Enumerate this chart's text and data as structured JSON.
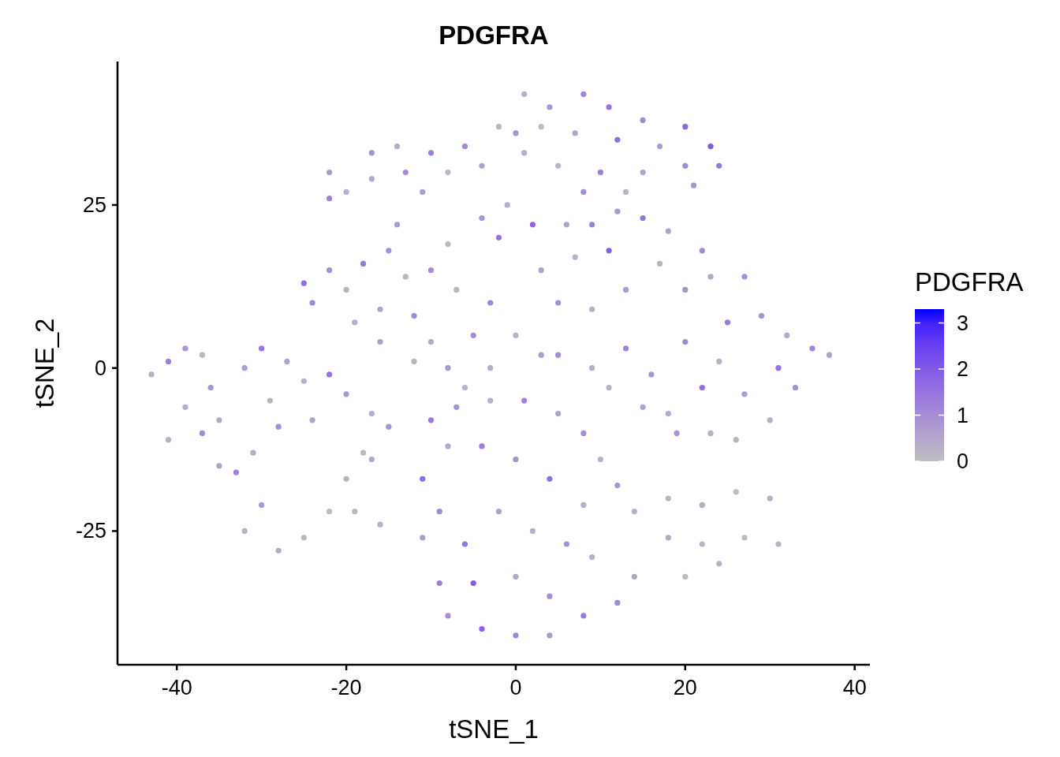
{
  "chart_data": {
    "type": "scatter",
    "title": "PDGFRA",
    "xlabel": "tSNE_1",
    "ylabel": "tSNE_2",
    "clabel": "PDGFRA",
    "xlim": [
      -47,
      41.8
    ],
    "ylim": [
      -45.5,
      47
    ],
    "xticks": [
      -40,
      -20,
      0,
      20,
      40
    ],
    "yticks": [
      -25,
      0,
      25
    ],
    "clim": [
      0,
      3.3
    ],
    "cticks": [
      0,
      1,
      2,
      3
    ],
    "grid": false,
    "marker": "circle",
    "x": [
      1,
      4,
      8,
      11,
      15,
      20,
      23,
      24,
      20,
      15,
      10,
      5,
      1,
      0,
      3,
      7,
      12,
      17,
      21,
      8,
      13,
      -2,
      -22,
      -20,
      -22,
      -17,
      -14,
      -10,
      -6,
      -4,
      -8,
      -13,
      -17,
      -11,
      -25,
      -24,
      -22,
      -20,
      -18,
      -15,
      -13,
      -16,
      -19,
      -12,
      -10,
      -8,
      -12,
      -6,
      -5,
      -7,
      -3,
      -2,
      -4,
      -1,
      2,
      3,
      0,
      3,
      5,
      7,
      9,
      12,
      15,
      18,
      22,
      23,
      20,
      17,
      13,
      9,
      11,
      6,
      -8,
      -14,
      -10,
      -16,
      -3,
      27,
      5,
      9,
      13,
      11,
      16,
      20,
      18,
      23,
      25,
      22,
      27,
      29,
      32,
      35,
      37,
      33,
      30,
      26,
      19,
      24,
      15,
      31,
      -43,
      -41,
      -39,
      -37,
      -36,
      -39,
      -41,
      -37,
      -35,
      -32,
      -30,
      -27,
      -25,
      -22,
      -20,
      -17,
      -15,
      -18,
      -20,
      -22,
      -25,
      -28,
      -32,
      -30,
      -33,
      -35,
      -31,
      -28,
      -29,
      -24,
      -19,
      -16,
      -17,
      -10,
      -7,
      -3,
      1,
      5,
      8,
      10,
      12,
      8,
      4,
      0,
      -4,
      -8,
      -11,
      -9,
      -11,
      -6,
      -2,
      2,
      6,
      9,
      14,
      12,
      8,
      4,
      0,
      -4,
      -8,
      -9,
      -5,
      0,
      4,
      14,
      18,
      22,
      26,
      30,
      18,
      22,
      27,
      31,
      24,
      20
    ],
    "values": [
      42,
      40,
      42,
      40,
      38,
      37,
      34,
      31,
      31,
      30,
      30,
      31,
      33,
      36,
      37,
      36,
      35,
      34,
      28,
      27,
      27,
      37,
      30,
      27,
      26,
      33,
      34,
      33,
      34,
      31,
      30,
      30,
      29,
      27,
      13,
      10,
      15,
      12,
      16,
      18,
      14,
      9,
      7,
      8,
      4,
      0,
      1,
      -3,
      5,
      12,
      10,
      20,
      23,
      25,
      22,
      15,
      5,
      2,
      10,
      17,
      22,
      24,
      23,
      21,
      18,
      14,
      12,
      16,
      12,
      9,
      18,
      22,
      19,
      22,
      15,
      4,
      0,
      14,
      2,
      0,
      3,
      -3,
      -1,
      4,
      -7,
      -10,
      7,
      -3,
      -4,
      8,
      5,
      3,
      2,
      -3,
      -8,
      -11,
      -10,
      1,
      -6,
      0,
      -1,
      1,
      3,
      2,
      -3,
      -6,
      -11,
      -10,
      -8,
      0,
      3,
      1,
      -2,
      -1,
      -4,
      -7,
      -9,
      -13,
      -17,
      -22,
      -26,
      -28,
      -25,
      -21,
      -16,
      -15,
      -13,
      -9,
      -5,
      -8,
      -22,
      -24,
      -14,
      -8,
      -6,
      -5,
      -5,
      -7,
      -10,
      -14,
      -18,
      -21,
      -17,
      -14,
      -12,
      -12,
      -17,
      -22,
      -26,
      -27,
      -22,
      -25,
      -27,
      -29,
      -32,
      -36,
      -38,
      -41,
      -41,
      -40,
      -38,
      -33,
      -33,
      -32,
      -35,
      -22,
      -20,
      -21,
      -19,
      -20,
      -26,
      -27,
      -26,
      -27,
      -30,
      -32
    ],
    "cvalues": [
      0.3,
      0.8,
      1.2,
      1.5,
      1.0,
      1.8,
      2.0,
      1.4,
      1.1,
      0.6,
      1.3,
      0.2,
      0.4,
      0.9,
      0.1,
      0.5,
      1.7,
      0.7,
      0.9,
      1.0,
      0.3,
      0.2,
      0.8,
      0.3,
      1.2,
      0.9,
      0.4,
      1.3,
      1.1,
      0.6,
      0.2,
      1.0,
      0.5,
      0.7,
      1.6,
      1.2,
      1.0,
      0.3,
      1.4,
      0.9,
      0.2,
      0.6,
      0.4,
      1.1,
      0.5,
      0.8,
      0.2,
      0.3,
      1.0,
      0.2,
      1.2,
      1.5,
      0.9,
      0.4,
      1.8,
      0.6,
      0.3,
      0.7,
      1.0,
      0.3,
      1.3,
      0.8,
      1.5,
      0.6,
      1.1,
      0.5,
      0.9,
      0.2,
      0.7,
      0.4,
      1.9,
      0.6,
      0.2,
      0.8,
      1.0,
      0.7,
      0.4,
      1.0,
      1.0,
      0.4,
      1.2,
      0.3,
      0.8,
      1.1,
      0.5,
      0.3,
      1.4,
      1.6,
      0.7,
      1.0,
      0.5,
      1.2,
      0.6,
      1.0,
      0.4,
      0.2,
      0.8,
      0.3,
      0.6,
      1.5,
      0.3,
      1.3,
      0.8,
      0.2,
      0.9,
      0.4,
      0.3,
      1.1,
      0.5,
      0.7,
      1.4,
      0.6,
      0.3,
      1.5,
      0.8,
      0.4,
      0.9,
      0.2,
      0.3,
      0.1,
      0.2,
      0.5,
      0.3,
      0.8,
      1.2,
      0.6,
      0.4,
      1.0,
      0.2,
      0.6,
      0.2,
      0.3,
      0.5,
      1.4,
      0.9,
      0.4,
      1.2,
      0.6,
      1.0,
      0.3,
      0.8,
      0.4,
      1.6,
      0.9,
      1.3,
      0.5,
      1.7,
      1.1,
      0.7,
      1.5,
      0.6,
      0.3,
      0.9,
      0.4,
      0.6,
      1.1,
      1.4,
      0.8,
      1.2,
      1.8,
      1.0,
      1.3,
      2.0,
      0.5,
      1.0,
      0.3,
      0.2,
      0.4,
      0.1,
      0.3,
      0.5,
      0.2,
      0.1,
      0.2,
      0.3,
      0.2
    ]
  }
}
